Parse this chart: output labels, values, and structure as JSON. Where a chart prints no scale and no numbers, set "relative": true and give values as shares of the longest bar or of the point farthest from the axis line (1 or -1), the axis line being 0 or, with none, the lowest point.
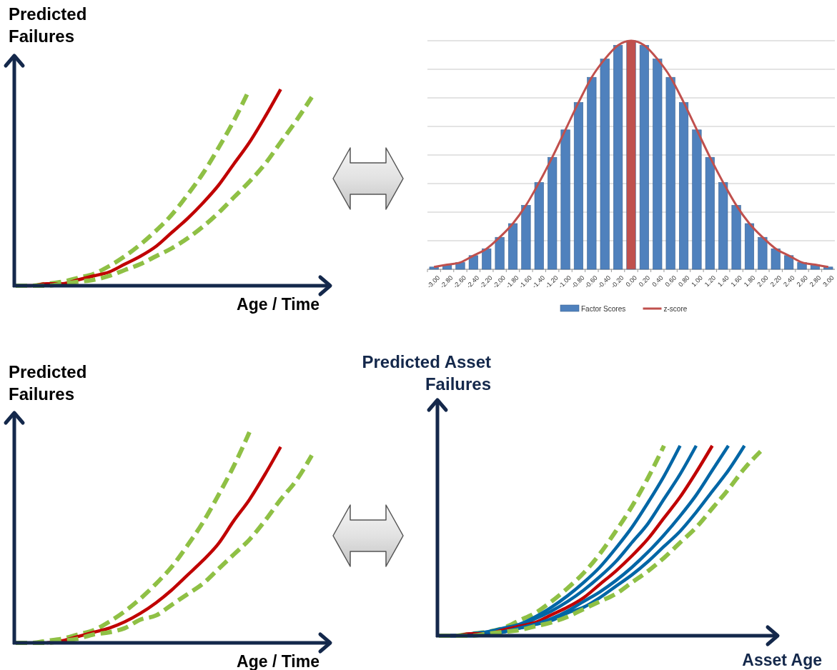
{
  "chart_data": [
    {
      "type": "line",
      "relative": true,
      "ylabel": "Predicted Failures",
      "xlabel": "Age / Time",
      "legend": false,
      "categories": [
        null,
        null,
        null,
        null,
        null,
        null,
        null,
        null,
        null,
        null,
        null,
        null,
        null,
        null,
        null,
        null,
        null,
        null,
        null,
        null,
        null
      ],
      "series": [
        {
          "color": "#8fc045",
          "line_style": "dashed",
          "values": [
            0,
            0.0,
            0.01,
            0.02,
            0.04,
            0.06,
            0.1,
            0.15,
            0.21,
            0.28,
            0.36,
            0.46,
            0.57,
            0.7,
            0.84,
            1,
            null,
            null,
            null,
            null,
            null
          ]
        },
        {
          "color": "#c00000",
          "line_style": "solid",
          "values": [
            0,
            0.0,
            0.01,
            0.01,
            0.03,
            0.05,
            0.07,
            0.11,
            0.15,
            0.2,
            0.27,
            0.34,
            0.42,
            0.51,
            0.62,
            0.73,
            0.86,
            1,
            null,
            null,
            null
          ]
        },
        {
          "color": "#8fc045",
          "line_style": "dashed",
          "values": [
            0,
            0.0,
            0.0,
            0.01,
            0.02,
            0.03,
            0.05,
            0.08,
            0.11,
            0.15,
            0.19,
            0.24,
            0.3,
            0.37,
            0.45,
            0.53,
            0.62,
            0.73,
            0.84,
            0.96,
            null
          ]
        }
      ]
    },
    {
      "type": "bar",
      "relative": true,
      "grid": "y",
      "legend": "bottom",
      "categories": [
        "-3.00",
        "-2.80",
        "-2.60",
        "-2.40",
        "-2.20",
        "-2.00",
        "-1.80",
        "-1.60",
        "-1.40",
        "-1.20",
        "-1.00",
        "-0.80",
        "-0.60",
        "-0.40",
        "-0.20",
        "0.00",
        "0.20",
        "0.40",
        "0.60",
        "0.80",
        "1.00",
        "1.20",
        "1.40",
        "1.60",
        "1.80",
        "2.00",
        "2.20",
        "2.40",
        "2.60",
        "2.80",
        "3.00"
      ],
      "series": [
        {
          "name": "Factor Scores",
          "type": "bar",
          "color": "#4f81bd",
          "colors": [
            "#4f81bd",
            "#4f81bd",
            "#4f81bd",
            "#4f81bd",
            "#4f81bd",
            "#4f81bd",
            "#4f81bd",
            "#4f81bd",
            "#4f81bd",
            "#4f81bd",
            "#4f81bd",
            "#4f81bd",
            "#4f81bd",
            "#4f81bd",
            "#4f81bd",
            "#c0504d",
            "#4f81bd",
            "#4f81bd",
            "#4f81bd",
            "#4f81bd",
            "#4f81bd",
            "#4f81bd",
            "#4f81bd",
            "#4f81bd",
            "#4f81bd",
            "#4f81bd",
            "#4f81bd",
            "#4f81bd",
            "#4f81bd",
            "#4f81bd",
            "#4f81bd"
          ],
          "values": [
            0.01,
            0.02,
            0.03,
            0.06,
            0.09,
            0.14,
            0.2,
            0.28,
            0.38,
            0.49,
            0.61,
            0.73,
            0.84,
            0.92,
            0.98,
            1,
            0.98,
            0.92,
            0.84,
            0.73,
            0.61,
            0.49,
            0.38,
            0.28,
            0.2,
            0.14,
            0.09,
            0.06,
            0.03,
            0.02,
            0.01
          ]
        },
        {
          "name": "z-score",
          "type": "line",
          "color": "#c0504d",
          "values": [
            0.01,
            0.02,
            0.03,
            0.06,
            0.09,
            0.14,
            0.2,
            0.28,
            0.38,
            0.49,
            0.61,
            0.73,
            0.84,
            0.92,
            0.98,
            1,
            0.98,
            0.92,
            0.84,
            0.73,
            0.61,
            0.49,
            0.38,
            0.28,
            0.2,
            0.14,
            0.09,
            0.06,
            0.03,
            0.02,
            0.01
          ]
        }
      ]
    },
    {
      "type": "line",
      "relative": true,
      "ylabel": "Predicted Failures",
      "xlabel": "Age / Time",
      "legend": false,
      "categories": [
        null,
        null,
        null,
        null,
        null,
        null,
        null,
        null,
        null,
        null,
        null,
        null,
        null,
        null,
        null,
        null,
        null,
        null,
        null,
        null,
        null
      ],
      "series": [
        {
          "color": "#8fc045",
          "line_style": "dashed",
          "values": [
            0,
            0.0,
            0.01,
            0.02,
            0.04,
            0.06,
            0.1,
            0.15,
            0.21,
            0.28,
            0.36,
            0.46,
            0.57,
            0.7,
            0.84,
            1,
            null,
            null,
            null,
            null,
            null
          ]
        },
        {
          "color": "#c00000",
          "line_style": "solid",
          "values": [
            null,
            null,
            0.0,
            0.01,
            0.03,
            0.05,
            0.07,
            0.1,
            0.14,
            0.19,
            0.25,
            0.32,
            0.39,
            0.47,
            0.58,
            0.68,
            0.8,
            0.93,
            null,
            null,
            null
          ]
        },
        {
          "color": "#8fc045",
          "line_style": "dashed",
          "values": [
            0,
            0.0,
            0.0,
            0.01,
            0.02,
            0.04,
            0.05,
            0.07,
            0.11,
            0.13,
            0.18,
            0.23,
            0.28,
            0.35,
            0.42,
            0.49,
            0.58,
            0.68,
            0.77,
            0.89,
            null
          ]
        }
      ]
    },
    {
      "type": "line",
      "relative": true,
      "ylabel": "Predicted Asset Failures",
      "xlabel": "Asset Age",
      "legend": false,
      "categories": [
        null,
        null,
        null,
        null,
        null,
        null,
        null,
        null,
        null,
        null,
        null,
        null,
        null,
        null,
        null,
        null,
        null,
        null,
        null,
        null,
        null
      ],
      "series": [
        {
          "color": "#8fc045",
          "line_style": "dashed",
          "values": [
            0,
            0.0,
            0.01,
            0.02,
            0.04,
            0.08,
            0.12,
            0.18,
            0.25,
            0.33,
            0.43,
            0.55,
            0.68,
            0.83,
            1,
            null,
            null,
            null,
            null,
            null,
            null
          ]
        },
        {
          "color": "#0066a6",
          "line_style": "solid",
          "values": [
            0,
            0.0,
            0.01,
            0.02,
            0.04,
            0.06,
            0.1,
            0.15,
            0.21,
            0.28,
            0.36,
            0.46,
            0.57,
            0.7,
            0.84,
            1,
            null,
            null,
            null,
            null,
            null
          ]
        },
        {
          "color": "#0066a6",
          "line_style": "solid",
          "values": [
            0,
            0.0,
            0.01,
            0.02,
            0.03,
            0.05,
            0.09,
            0.13,
            0.18,
            0.24,
            0.31,
            0.39,
            0.49,
            0.59,
            0.72,
            0.85,
            1,
            null,
            null,
            null,
            null
          ]
        },
        {
          "color": "#c00000",
          "line_style": "solid",
          "values": [
            0,
            0.0,
            0.01,
            0.01,
            0.03,
            0.05,
            0.07,
            0.11,
            0.15,
            0.2,
            0.27,
            0.34,
            0.42,
            0.51,
            0.62,
            0.73,
            0.86,
            1,
            null,
            null,
            null
          ]
        },
        {
          "color": "#0066a6",
          "line_style": "solid",
          "values": [
            0,
            0.0,
            0.0,
            0.01,
            0.02,
            0.04,
            0.06,
            0.09,
            0.13,
            0.18,
            0.23,
            0.29,
            0.36,
            0.44,
            0.53,
            0.63,
            0.74,
            0.87,
            1,
            null,
            null
          ]
        },
        {
          "color": "#0066a6",
          "line_style": "solid",
          "values": [
            0,
            0.0,
            0.0,
            0.01,
            0.02,
            0.04,
            0.06,
            0.08,
            0.12,
            0.15,
            0.2,
            0.26,
            0.32,
            0.39,
            0.47,
            0.55,
            0.65,
            0.76,
            0.87,
            1,
            null
          ]
        },
        {
          "color": "#8fc045",
          "line_style": "dashed",
          "values": [
            0,
            0.0,
            0.0,
            0.01,
            0.02,
            0.03,
            0.05,
            0.07,
            0.1,
            0.14,
            0.18,
            0.22,
            0.28,
            0.34,
            0.41,
            0.49,
            0.57,
            0.67,
            0.77,
            0.88,
            0.97
          ]
        }
      ]
    }
  ]
}
